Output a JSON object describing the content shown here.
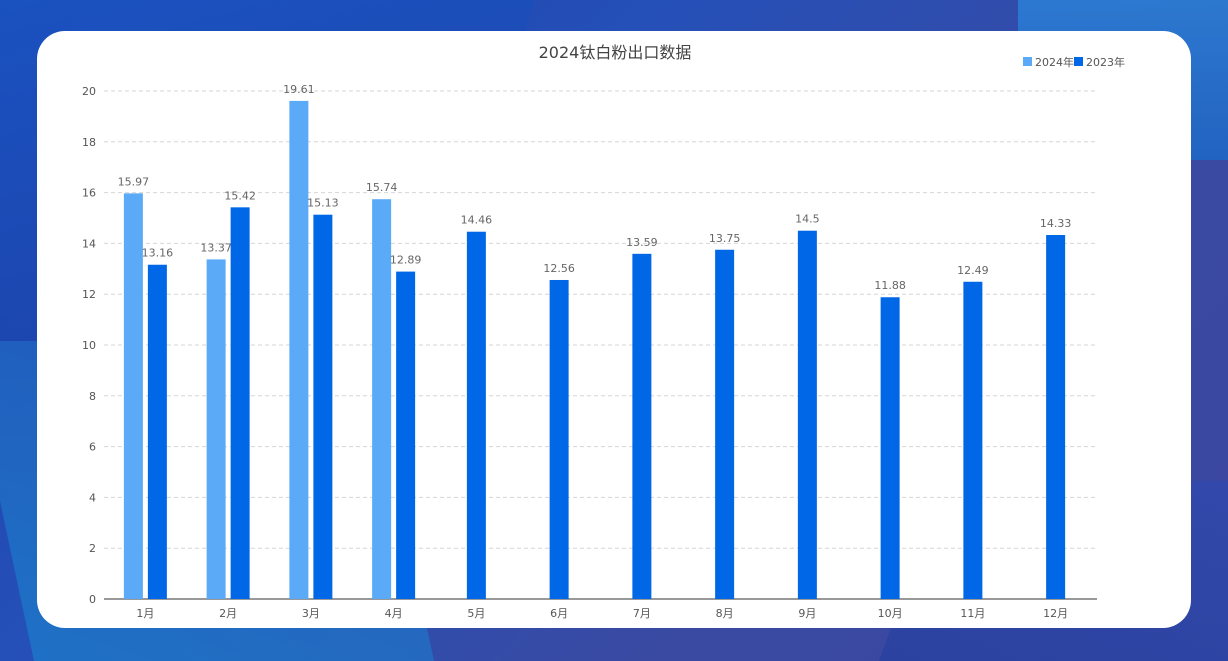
{
  "chart_data": {
    "type": "bar",
    "title": "2024钛白粉出口数据",
    "xlabel": "",
    "ylabel": "",
    "categories": [
      "1月",
      "2月",
      "3月",
      "4月",
      "5月",
      "6月",
      "7月",
      "8月",
      "9月",
      "10月",
      "11月",
      "12月"
    ],
    "series": [
      {
        "name": "2024年",
        "color": "#5aaaf7",
        "values": [
          15.97,
          13.37,
          19.61,
          15.74,
          null,
          null,
          null,
          null,
          null,
          null,
          null,
          null
        ],
        "labels": [
          "15.97",
          "13.37",
          "19.61",
          "15.74",
          "",
          "",
          "",
          "",
          "",
          "",
          "",
          ""
        ]
      },
      {
        "name": "2023年",
        "color": "#0068e6",
        "values": [
          13.16,
          15.42,
          15.13,
          12.89,
          14.46,
          12.56,
          13.59,
          13.75,
          14.5,
          11.88,
          12.49,
          14.33
        ],
        "labels": [
          "13.16",
          "15.42",
          "15.13",
          "12.89",
          "14.46",
          "12.56",
          "13.59",
          "13.75",
          "14.5",
          "11.88",
          "12.49",
          "14.33"
        ]
      }
    ],
    "ylim": [
      0,
      20
    ],
    "yticks": [
      "0",
      "2",
      "4",
      "6",
      "8",
      "10",
      "12",
      "14",
      "16",
      "18",
      "20"
    ],
    "grid": true,
    "legend_position": "top-right"
  }
}
